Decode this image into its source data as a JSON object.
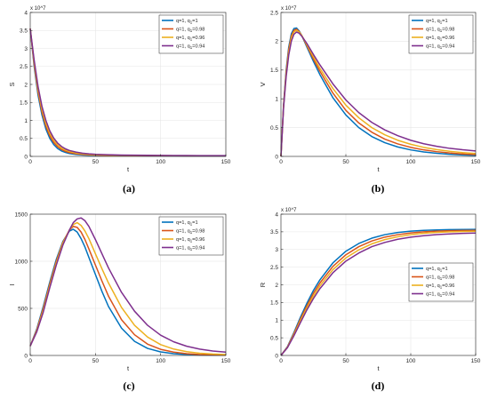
{
  "colors": {
    "series": [
      "#0072BD",
      "#D95319",
      "#EDB120",
      "#7E2F8E"
    ],
    "grid": "#e6e6e6",
    "axis": "#262626"
  },
  "chart_data": [
    {
      "type": "line",
      "panel": "(a)",
      "xlabel": "t",
      "ylabel": "S",
      "exponent_label": "x 10^7",
      "xlim": [
        0,
        150
      ],
      "ylim": [
        0,
        40000000
      ],
      "xticks": [
        0,
        50,
        100,
        150
      ],
      "xtick_labels": [
        "0",
        "50",
        "100",
        "150"
      ],
      "yticks": [
        0,
        5000000,
        10000000,
        15000000,
        20000000,
        25000000,
        30000000,
        35000000,
        40000000
      ],
      "ytick_labels": [
        "0",
        "0.5",
        "1",
        "1.5",
        "2",
        "2.5",
        "3",
        "3.5",
        "4"
      ],
      "grid": true,
      "legend_position": "top-right",
      "x": [
        0,
        3,
        6,
        9,
        12,
        15,
        18,
        21,
        24,
        27,
        30,
        35,
        40,
        45,
        50,
        60,
        70,
        80,
        90,
        100,
        110,
        120,
        130,
        140,
        150
      ],
      "series": [
        {
          "name": "q=1, q_1=1",
          "values": [
            35500000,
            25000000,
            17000000,
            11500000,
            7600000,
            5000000,
            3300000,
            2200000,
            1500000,
            1100000,
            800000,
            550000,
            400000,
            320000,
            270000,
            220000,
            190000,
            170000,
            160000,
            150000,
            140000,
            135000,
            130000,
            125000,
            120000
          ]
        },
        {
          "name": "q=1, q_1=0.98",
          "values": [
            35500000,
            25600000,
            17800000,
            12300000,
            8400000,
            5700000,
            3900000,
            2700000,
            1900000,
            1400000,
            1050000,
            730000,
            540000,
            430000,
            360000,
            280000,
            240000,
            210000,
            195000,
            180000,
            170000,
            160000,
            155000,
            150000,
            145000
          ]
        },
        {
          "name": "q=1, q_1=0.96",
          "values": [
            35500000,
            26200000,
            18600000,
            13100000,
            9200000,
            6400000,
            4500000,
            3200000,
            2300000,
            1750000,
            1350000,
            950000,
            710000,
            560000,
            470000,
            360000,
            300000,
            260000,
            235000,
            215000,
            200000,
            190000,
            180000,
            175000,
            170000
          ]
        },
        {
          "name": "q=1, q_1=0.94",
          "values": [
            35500000,
            26800000,
            19400000,
            13900000,
            10000000,
            7100000,
            5100000,
            3700000,
            2750000,
            2100000,
            1650000,
            1200000,
            900000,
            720000,
            600000,
            460000,
            380000,
            330000,
            295000,
            270000,
            250000,
            235000,
            225000,
            215000,
            205000
          ]
        }
      ]
    },
    {
      "type": "line",
      "panel": "(b)",
      "xlabel": "t",
      "ylabel": "V",
      "exponent_label": "x 10^7",
      "xlim": [
        0,
        150
      ],
      "ylim": [
        0,
        25000000
      ],
      "xticks": [
        0,
        50,
        100,
        150
      ],
      "xtick_labels": [
        "0",
        "50",
        "100",
        "150"
      ],
      "yticks": [
        0,
        5000000,
        10000000,
        15000000,
        20000000,
        25000000
      ],
      "ytick_labels": [
        "0",
        "0.5",
        "1",
        "1.5",
        "2",
        "2.5"
      ],
      "grid": true,
      "legend_position": "top-right",
      "x": [
        0,
        2,
        4,
        6,
        8,
        10,
        12,
        14,
        16,
        20,
        25,
        30,
        40,
        50,
        60,
        70,
        80,
        90,
        100,
        110,
        120,
        130,
        140,
        150
      ],
      "series": [
        {
          "name": "q=1, q_1=1",
          "values": [
            0,
            9000000,
            15000000,
            19000000,
            21300000,
            22200000,
            22300000,
            21800000,
            21000000,
            19000000,
            16500000,
            14200000,
            10200000,
            7200000,
            5000000,
            3450000,
            2380000,
            1640000,
            1130000,
            780000,
            540000,
            370000,
            260000,
            180000
          ]
        },
        {
          "name": "q=1, q_1=0.98",
          "values": [
            0,
            8800000,
            14600000,
            18600000,
            20900000,
            21900000,
            22100000,
            21700000,
            21000000,
            19200000,
            16900000,
            14800000,
            11000000,
            8000000,
            5800000,
            4200000,
            3000000,
            2170000,
            1570000,
            1130000,
            820000,
            590000,
            430000,
            310000
          ]
        },
        {
          "name": "q=1, q_1=0.96",
          "values": [
            0,
            8600000,
            14200000,
            18100000,
            20500000,
            21600000,
            21900000,
            21600000,
            21000000,
            19400000,
            17300000,
            15300000,
            11800000,
            8900000,
            6700000,
            5000000,
            3750000,
            2800000,
            2100000,
            1570000,
            1180000,
            880000,
            660000,
            500000
          ]
        },
        {
          "name": "q=1, q_1=0.94",
          "values": [
            0,
            8400000,
            13800000,
            17600000,
            20000000,
            21200000,
            21600000,
            21400000,
            20900000,
            19600000,
            17700000,
            15900000,
            12600000,
            9800000,
            7600000,
            5900000,
            4600000,
            3600000,
            2800000,
            2200000,
            1750000,
            1400000,
            1150000,
            950000
          ]
        }
      ]
    },
    {
      "type": "line",
      "panel": "(c)",
      "xlabel": "t",
      "ylabel": "I",
      "exponent_label": "",
      "xlim": [
        0,
        150
      ],
      "ylim": [
        0,
        1500
      ],
      "xticks": [
        0,
        50,
        100,
        150
      ],
      "xtick_labels": [
        "0",
        "50",
        "100",
        "150"
      ],
      "yticks": [
        0,
        500,
        1000,
        1500
      ],
      "ytick_labels": [
        "0",
        "500",
        "1000",
        "1500"
      ],
      "grid": true,
      "legend_position": "top-right",
      "x": [
        0,
        5,
        10,
        15,
        20,
        25,
        30,
        33,
        36,
        39,
        42,
        45,
        50,
        55,
        60,
        70,
        80,
        90,
        100,
        110,
        120,
        130,
        140,
        150
      ],
      "series": [
        {
          "name": "q=1, q_1=1",
          "values": [
            100,
            280,
            520,
            780,
            1020,
            1210,
            1320,
            1340,
            1310,
            1240,
            1150,
            1040,
            860,
            680,
            520,
            290,
            150,
            75,
            38,
            19,
            10,
            5,
            3,
            2
          ]
        },
        {
          "name": "q=1, q_1=0.98",
          "values": [
            100,
            270,
            500,
            760,
            1000,
            1200,
            1330,
            1370,
            1360,
            1310,
            1230,
            1130,
            960,
            790,
            630,
            380,
            220,
            120,
            65,
            35,
            19,
            10,
            6,
            4
          ]
        },
        {
          "name": "q=1, q_1=0.96",
          "values": [
            100,
            260,
            480,
            740,
            980,
            1190,
            1330,
            1390,
            1410,
            1380,
            1320,
            1240,
            1080,
            920,
            770,
            510,
            320,
            195,
            115,
            68,
            40,
            24,
            15,
            10
          ]
        },
        {
          "name": "q=1, q_1=0.94",
          "values": [
            100,
            250,
            460,
            720,
            960,
            1170,
            1330,
            1410,
            1450,
            1460,
            1430,
            1370,
            1230,
            1080,
            930,
            670,
            470,
            320,
            215,
            145,
            98,
            67,
            47,
            35
          ]
        }
      ]
    },
    {
      "type": "line",
      "panel": "(d)",
      "xlabel": "t",
      "ylabel": "R",
      "exponent_label": "x 10^7",
      "xlim": [
        0,
        150
      ],
      "ylim": [
        0,
        40000000
      ],
      "xticks": [
        0,
        50,
        100,
        150
      ],
      "xtick_labels": [
        "0",
        "50",
        "100",
        "150"
      ],
      "yticks": [
        0,
        5000000,
        10000000,
        15000000,
        20000000,
        25000000,
        30000000,
        35000000,
        40000000
      ],
      "ytick_labels": [
        "0",
        "0.5",
        "1",
        "1.5",
        "2",
        "2.5",
        "3",
        "3.5",
        "4"
      ],
      "grid": true,
      "legend_position": "center-right",
      "x": [
        0,
        5,
        10,
        15,
        20,
        25,
        30,
        40,
        50,
        60,
        70,
        80,
        90,
        100,
        110,
        120,
        130,
        140,
        150
      ],
      "series": [
        {
          "name": "q=1, q_1=1",
          "values": [
            0,
            2500000,
            6500000,
            10800000,
            14800000,
            18400000,
            21400000,
            26200000,
            29500000,
            31700000,
            33200000,
            34200000,
            34800000,
            35200000,
            35400000,
            35550000,
            35620000,
            35660000,
            35680000
          ]
        },
        {
          "name": "q=1, q_1=0.98",
          "values": [
            0,
            2400000,
            6200000,
            10300000,
            14100000,
            17600000,
            20500000,
            25200000,
            28500000,
            30800000,
            32400000,
            33500000,
            34200000,
            34700000,
            35000000,
            35200000,
            35300000,
            35380000,
            35420000
          ]
        },
        {
          "name": "q=1, q_1=0.96",
          "values": [
            0,
            2300000,
            5900000,
            9800000,
            13500000,
            16800000,
            19700000,
            24300000,
            27600000,
            29900000,
            31600000,
            32800000,
            33600000,
            34200000,
            34600000,
            34850000,
            35000000,
            35100000,
            35170000
          ]
        },
        {
          "name": "q=1, q_1=0.94",
          "values": [
            0,
            2200000,
            5600000,
            9300000,
            12900000,
            16100000,
            18900000,
            23400000,
            26700000,
            29000000,
            30800000,
            32000000,
            32900000,
            33500000,
            33900000,
            34200000,
            34400000,
            34550000,
            34650000
          ]
        }
      ]
    }
  ]
}
